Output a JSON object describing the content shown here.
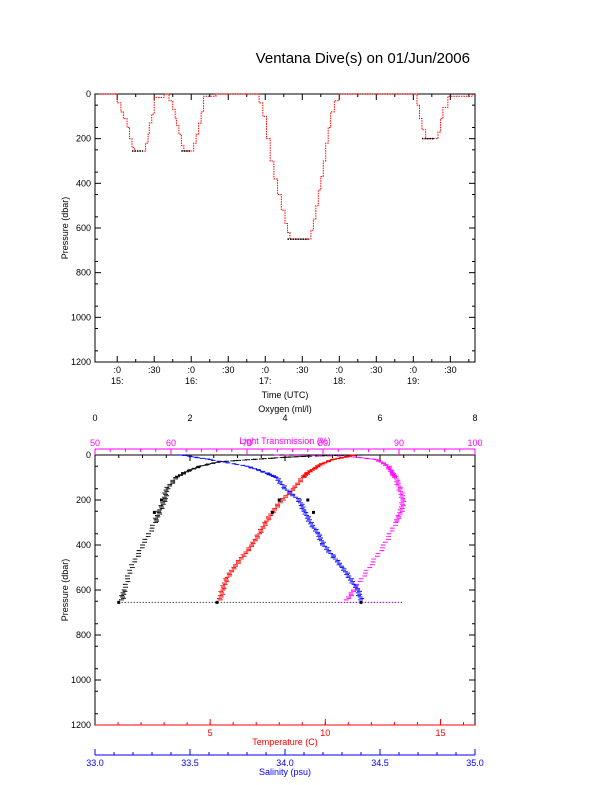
{
  "title": "Ventana Dive(s) on 01/Jun/2006",
  "colors": {
    "axis": "#000000",
    "pressure_trace": "#ff0000",
    "bottom_marker": "#000000",
    "oxygen": "#000000",
    "light_transmission": "#ff00ff",
    "temperature": "#ff0000",
    "salinity": "#0000ff"
  },
  "chart_data": [
    {
      "type": "line",
      "title": "Ventana Dive(s) on 01/Jun/2006",
      "xlabel": "Time (UTC)",
      "ylabel": "Pressure (dbar)",
      "x_unit": "minutes after 15:00 UTC",
      "xlim": [
        -18,
        290
      ],
      "ylim": [
        1200,
        0
      ],
      "yticks": [
        0,
        200,
        400,
        600,
        800,
        1000,
        1200
      ],
      "xticks": [
        {
          "x": 0,
          "top": ":0",
          "bottom": "15:"
        },
        {
          "x": 30,
          "top": ":30",
          "bottom": ""
        },
        {
          "x": 60,
          "top": ":0",
          "bottom": "16:"
        },
        {
          "x": 90,
          "top": ":30",
          "bottom": ""
        },
        {
          "x": 120,
          "top": ":0",
          "bottom": "17:"
        },
        {
          "x": 150,
          "top": ":30",
          "bottom": ""
        },
        {
          "x": 180,
          "top": ":0",
          "bottom": "18:"
        },
        {
          "x": 210,
          "top": ":30",
          "bottom": ""
        },
        {
          "x": 240,
          "top": ":0",
          "bottom": "19:"
        },
        {
          "x": 270,
          "top": ":30",
          "bottom": ""
        }
      ],
      "series": [
        {
          "x": [
            -15,
            -2,
            0,
            3,
            5,
            8,
            10,
            12,
            14,
            21,
            23,
            25,
            26,
            28,
            30,
            38,
            40,
            42,
            45,
            47,
            48,
            50,
            52,
            54,
            59,
            62,
            64,
            66,
            68,
            70,
            80,
            82,
            90,
            110,
            115,
            118,
            121,
            124,
            127,
            130,
            133,
            136,
            138,
            140,
            155,
            157,
            159,
            161,
            163,
            165,
            167,
            169,
            171,
            173,
            176,
            180,
            210,
            240,
            243,
            245,
            247,
            250,
            257,
            260,
            262,
            264,
            268,
            288
          ],
          "y": [
            0,
            0,
            40,
            80,
            110,
            150,
            200,
            240,
            255,
            255,
            220,
            180,
            130,
            90,
            15,
            0,
            0,
            30,
            70,
            110,
            140,
            180,
            230,
            255,
            255,
            220,
            180,
            130,
            80,
            10,
            0,
            0,
            0,
            0,
            40,
            100,
            200,
            300,
            380,
            450,
            520,
            580,
            620,
            650,
            650,
            610,
            560,
            500,
            430,
            370,
            300,
            220,
            150,
            80,
            30,
            0,
            0,
            0,
            50,
            110,
            160,
            200,
            200,
            170,
            110,
            60,
            10,
            0
          ]
        }
      ],
      "bottom_segments": [
        {
          "x": [
            12,
            21
          ],
          "y": 255
        },
        {
          "x": [
            52,
            59
          ],
          "y": 255
        },
        {
          "x": [
            138,
            155
          ],
          "y": 650
        },
        {
          "x": [
            247,
            257
          ],
          "y": 200
        }
      ]
    },
    {
      "type": "scatter",
      "ylabel": "Pressure (dbar)",
      "ylim": [
        1200,
        0
      ],
      "yticks": [
        0,
        200,
        400,
        600,
        800,
        1000,
        1200
      ],
      "axes": [
        {
          "name": "oxygen",
          "label": "Oxygen (ml/l)",
          "lim": [
            0,
            8
          ],
          "ticks": [
            0,
            2,
            4,
            6,
            8
          ],
          "minor_step": 0.5,
          "position": "top"
        },
        {
          "name": "light",
          "label": "Light Transmission (%)",
          "lim": [
            50,
            100
          ],
          "ticks": [
            50,
            60,
            70,
            80,
            90,
            100
          ],
          "minor_step": 2,
          "position": "top-inner"
        },
        {
          "name": "temperature",
          "label": "Temperature (C)",
          "lim": [
            0,
            16.5
          ],
          "ticks": [
            5,
            10,
            15
          ],
          "minor_step": 1,
          "position": "bottom"
        },
        {
          "name": "salinity",
          "label": "Salinity (psu)",
          "lim": [
            33.0,
            35.0
          ],
          "ticks": [
            33.0,
            33.5,
            34.0,
            34.5,
            35.0
          ],
          "tick_labels": [
            "33.0",
            "33.5",
            "34.0",
            "34.5",
            "35.0"
          ],
          "minor_step": 0.1,
          "position": "bottom-outer"
        }
      ],
      "profiles": [
        {
          "name": "Oxygen",
          "axis": "oxygen",
          "p": [
            0,
            5,
            10,
            20,
            30,
            50,
            75,
            100,
            150,
            200,
            250,
            300,
            400,
            500,
            600,
            650
          ],
          "x": [
            5.6,
            4.5,
            4.0,
            3.3,
            2.6,
            2.2,
            1.9,
            1.7,
            1.5,
            1.45,
            1.35,
            1.25,
            1.0,
            0.75,
            0.6,
            0.55
          ]
        },
        {
          "name": "Light Transmission",
          "axis": "light",
          "p": [
            0,
            5,
            20,
            50,
            80,
            100,
            150,
            200,
            250,
            300,
            400,
            500,
            600,
            650
          ],
          "x": [
            74,
            83,
            87,
            88.5,
            89,
            89.5,
            90,
            90.5,
            90.2,
            89.5,
            88,
            86,
            84,
            83
          ]
        },
        {
          "name": "Temperature",
          "axis": "temperature",
          "p": [
            0,
            10,
            20,
            40,
            60,
            80,
            100,
            150,
            200,
            250,
            300,
            350,
            400,
            450,
            500,
            550,
            600,
            650
          ],
          "x": [
            11.2,
            10.8,
            10.3,
            9.8,
            9.5,
            9.2,
            9.0,
            8.6,
            8.1,
            7.7,
            7.4,
            7.1,
            6.8,
            6.4,
            6.0,
            5.7,
            5.5,
            5.4
          ]
        },
        {
          "name": "Salinity",
          "axis": "salinity",
          "p": [
            0,
            20,
            50,
            80,
            100,
            150,
            200,
            250,
            300,
            350,
            400,
            450,
            500,
            550,
            600,
            650
          ],
          "x": [
            33.45,
            33.6,
            33.8,
            33.9,
            33.95,
            34.0,
            34.07,
            34.1,
            34.13,
            34.17,
            34.2,
            34.25,
            34.3,
            34.34,
            34.38,
            34.4
          ]
        }
      ],
      "bottom_markers": [
        {
          "axis": "oxygen",
          "p": 200,
          "x": 1.4
        },
        {
          "axis": "oxygen",
          "p": 255,
          "x": 1.25
        },
        {
          "axis": "oxygen",
          "p": 655,
          "x": 0.5
        },
        {
          "axis": "temperature",
          "p": 200,
          "x": 8.0
        },
        {
          "axis": "temperature",
          "p": 255,
          "x": 7.7
        },
        {
          "axis": "temperature",
          "p": 655,
          "x": 5.3
        },
        {
          "axis": "salinity",
          "p": 200,
          "x": 34.12
        },
        {
          "axis": "salinity",
          "p": 255,
          "x": 34.15
        },
        {
          "axis": "salinity",
          "p": 655,
          "x": 34.4
        }
      ]
    }
  ]
}
